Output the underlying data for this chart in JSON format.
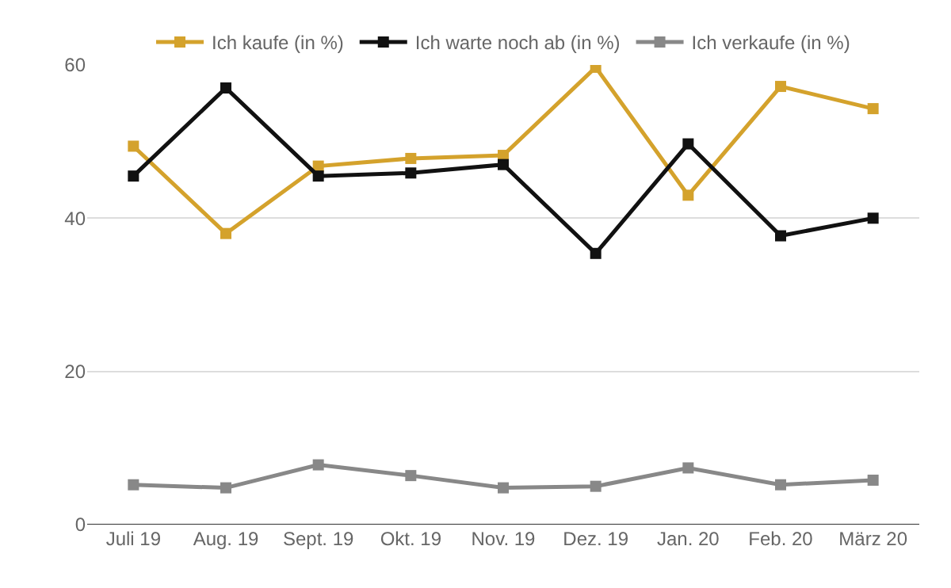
{
  "chart_data": {
    "type": "line",
    "categories": [
      "Juli 19",
      "Aug. 19",
      "Sept. 19",
      "Okt. 19",
      "Nov. 19",
      "Dez. 19",
      "Jan. 20",
      "Feb. 20",
      "März 20"
    ],
    "series": [
      {
        "name": "Ich kaufe (in %)",
        "color": "#d4a22c",
        "values": [
          49.4,
          38,
          46.8,
          47.8,
          48.2,
          59.7,
          43,
          57.2,
          54.3
        ]
      },
      {
        "name": "Ich warte noch ab (in %)",
        "color": "#111111",
        "values": [
          45.5,
          57,
          45.5,
          45.9,
          47,
          35.4,
          49.7,
          37.7,
          40
        ]
      },
      {
        "name": "Ich verkaufe (in %)",
        "color": "#888888",
        "values": [
          5.2,
          4.8,
          7.8,
          6.4,
          4.8,
          5,
          7.4,
          5.2,
          5.8
        ]
      }
    ],
    "ylim": [
      0,
      60
    ],
    "yticks": [
      0,
      20,
      40,
      60
    ],
    "grid": "y",
    "legend": "top",
    "marker": "square",
    "line_style": "solid"
  }
}
